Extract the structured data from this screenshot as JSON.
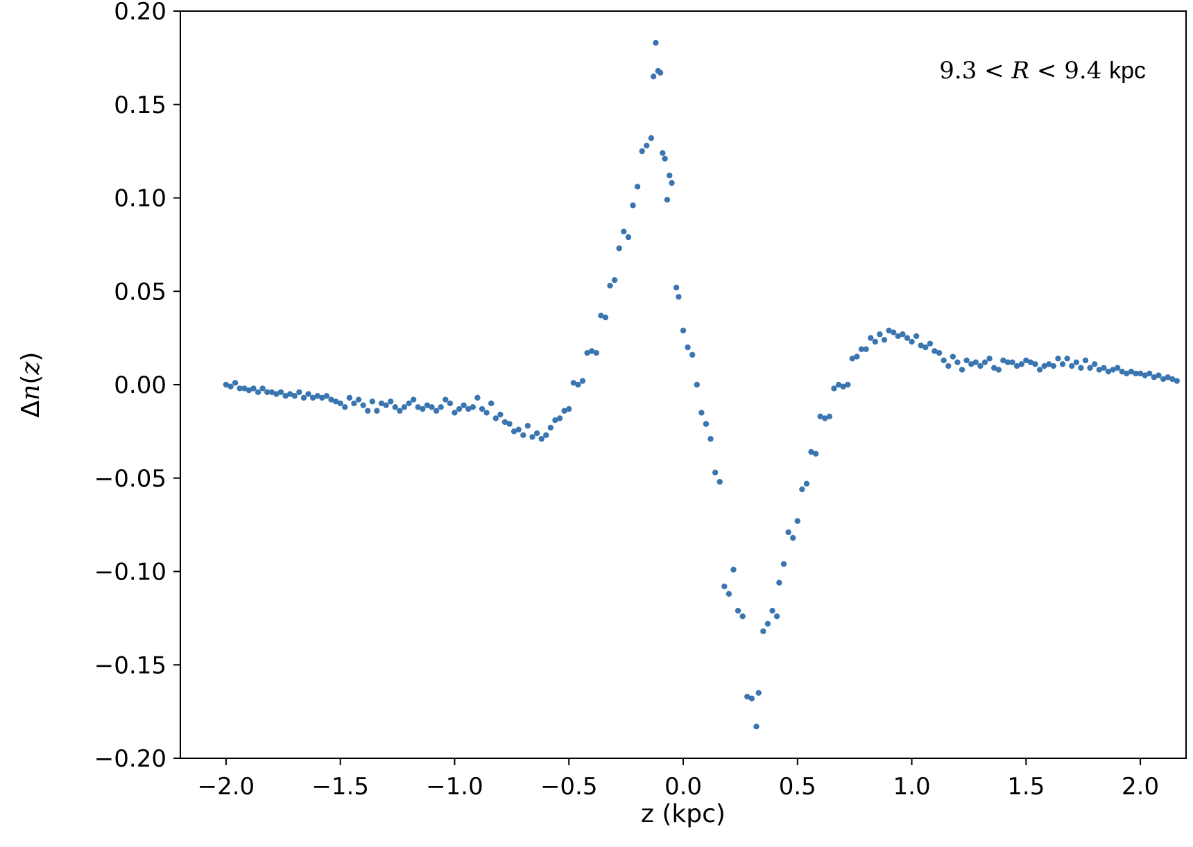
{
  "chart_data": {
    "type": "scatter",
    "xlabel": "z (kpc)",
    "ylabel": "Δn(z)",
    "ylabel_parts": {
      "delta": "Δ",
      "n": "n",
      "open": "(",
      "z": "z",
      "close": ")"
    },
    "annotation": {
      "text": "9.3 < R < 9.4 kpc",
      "parts": {
        "low": "9.3",
        "lt1": "<",
        "var": "R",
        "lt2": "<",
        "high": "9.4",
        "unit": "kpc"
      },
      "placement": "top-right"
    },
    "xlim": [
      -2.2,
      2.2
    ],
    "ylim": [
      -0.2,
      0.2
    ],
    "xticks": [
      -2.0,
      -1.5,
      -1.0,
      -0.5,
      0.0,
      0.5,
      1.0,
      1.5,
      2.0
    ],
    "xtick_labels": [
      "−2.0",
      "−1.5",
      "−1.0",
      "−0.5",
      "0.0",
      "0.5",
      "1.0",
      "1.5",
      "2.0"
    ],
    "yticks": [
      0.2,
      0.15,
      0.1,
      0.05,
      0.0,
      -0.05,
      -0.1,
      -0.15,
      -0.2
    ],
    "ytick_labels": [
      "0.20",
      "0.15",
      "0.10",
      "0.05",
      "0.00",
      "−0.05",
      "−0.10",
      "−0.15",
      "−0.20"
    ],
    "grid": false,
    "marker_color": "#3a75b0",
    "points": [
      [
        -2.0,
        0.0
      ],
      [
        -1.98,
        -0.001
      ],
      [
        -1.96,
        0.001
      ],
      [
        -1.94,
        -0.002
      ],
      [
        -1.92,
        -0.002
      ],
      [
        -1.9,
        -0.003
      ],
      [
        -1.88,
        -0.002
      ],
      [
        -1.86,
        -0.004
      ],
      [
        -1.84,
        -0.002
      ],
      [
        -1.82,
        -0.004
      ],
      [
        -1.8,
        -0.004
      ],
      [
        -1.78,
        -0.005
      ],
      [
        -1.76,
        -0.004
      ],
      [
        -1.74,
        -0.006
      ],
      [
        -1.72,
        -0.005
      ],
      [
        -1.7,
        -0.006
      ],
      [
        -1.68,
        -0.004
      ],
      [
        -1.66,
        -0.007
      ],
      [
        -1.64,
        -0.005
      ],
      [
        -1.62,
        -0.007
      ],
      [
        -1.6,
        -0.006
      ],
      [
        -1.58,
        -0.007
      ],
      [
        -1.56,
        -0.006
      ],
      [
        -1.54,
        -0.008
      ],
      [
        -1.52,
        -0.009
      ],
      [
        -1.5,
        -0.01
      ],
      [
        -1.48,
        -0.012
      ],
      [
        -1.46,
        -0.007
      ],
      [
        -1.44,
        -0.01
      ],
      [
        -1.42,
        -0.008
      ],
      [
        -1.4,
        -0.011
      ],
      [
        -1.38,
        -0.014
      ],
      [
        -1.36,
        -0.009
      ],
      [
        -1.34,
        -0.014
      ],
      [
        -1.32,
        -0.01
      ],
      [
        -1.3,
        -0.011
      ],
      [
        -1.28,
        -0.009
      ],
      [
        -1.26,
        -0.012
      ],
      [
        -1.24,
        -0.014
      ],
      [
        -1.22,
        -0.012
      ],
      [
        -1.2,
        -0.01
      ],
      [
        -1.18,
        -0.008
      ],
      [
        -1.16,
        -0.012
      ],
      [
        -1.14,
        -0.013
      ],
      [
        -1.12,
        -0.011
      ],
      [
        -1.1,
        -0.012
      ],
      [
        -1.08,
        -0.014
      ],
      [
        -1.06,
        -0.012
      ],
      [
        -1.04,
        -0.008
      ],
      [
        -1.02,
        -0.01
      ],
      [
        -1.0,
        -0.015
      ],
      [
        -0.98,
        -0.013
      ],
      [
        -0.96,
        -0.011
      ],
      [
        -0.94,
        -0.013
      ],
      [
        -0.92,
        -0.012
      ],
      [
        -0.9,
        -0.007
      ],
      [
        -0.88,
        -0.013
      ],
      [
        -0.86,
        -0.015
      ],
      [
        -0.84,
        -0.01
      ],
      [
        -0.82,
        -0.018
      ],
      [
        -0.8,
        -0.016
      ],
      [
        -0.78,
        -0.02
      ],
      [
        -0.76,
        -0.021
      ],
      [
        -0.74,
        -0.025
      ],
      [
        -0.72,
        -0.024
      ],
      [
        -0.7,
        -0.027
      ],
      [
        -0.68,
        -0.022
      ],
      [
        -0.66,
        -0.028
      ],
      [
        -0.64,
        -0.026
      ],
      [
        -0.62,
        -0.029
      ],
      [
        -0.6,
        -0.027
      ],
      [
        -0.58,
        -0.023
      ],
      [
        -0.56,
        -0.019
      ],
      [
        -0.54,
        -0.018
      ],
      [
        -0.52,
        -0.014
      ],
      [
        -0.5,
        -0.013
      ],
      [
        -0.48,
        0.001
      ],
      [
        -0.46,
        0.0
      ],
      [
        -0.44,
        0.002
      ],
      [
        -0.42,
        0.017
      ],
      [
        -0.4,
        0.018
      ],
      [
        -0.38,
        0.017
      ],
      [
        -0.36,
        0.037
      ],
      [
        -0.34,
        0.036
      ],
      [
        -0.32,
        0.053
      ],
      [
        -0.3,
        0.056
      ],
      [
        -0.28,
        0.073
      ],
      [
        -0.26,
        0.082
      ],
      [
        -0.24,
        0.079
      ],
      [
        -0.22,
        0.096
      ],
      [
        -0.2,
        0.106
      ],
      [
        -0.18,
        0.125
      ],
      [
        -0.16,
        0.128
      ],
      [
        -0.14,
        0.132
      ],
      [
        -0.13,
        0.165
      ],
      [
        -0.12,
        0.183
      ],
      [
        -0.11,
        0.168
      ],
      [
        -0.1,
        0.167
      ],
      [
        -0.09,
        0.124
      ],
      [
        -0.08,
        0.121
      ],
      [
        -0.07,
        0.099
      ],
      [
        -0.06,
        0.112
      ],
      [
        -0.05,
        0.108
      ],
      [
        -0.03,
        0.052
      ],
      [
        -0.02,
        0.047
      ],
      [
        0.0,
        0.029
      ],
      [
        0.02,
        0.02
      ],
      [
        0.04,
        0.016
      ],
      [
        0.06,
        0.0
      ],
      [
        0.08,
        -0.015
      ],
      [
        0.1,
        -0.021
      ],
      [
        0.12,
        -0.029
      ],
      [
        0.14,
        -0.047
      ],
      [
        0.16,
        -0.052
      ],
      [
        0.18,
        -0.108
      ],
      [
        0.2,
        -0.112
      ],
      [
        0.22,
        -0.099
      ],
      [
        0.24,
        -0.121
      ],
      [
        0.26,
        -0.124
      ],
      [
        0.28,
        -0.167
      ],
      [
        0.3,
        -0.168
      ],
      [
        0.32,
        -0.183
      ],
      [
        0.33,
        -0.165
      ],
      [
        0.35,
        -0.132
      ],
      [
        0.37,
        -0.128
      ],
      [
        0.39,
        -0.121
      ],
      [
        0.41,
        -0.124
      ],
      [
        0.42,
        -0.106
      ],
      [
        0.44,
        -0.096
      ],
      [
        0.46,
        -0.079
      ],
      [
        0.48,
        -0.082
      ],
      [
        0.5,
        -0.073
      ],
      [
        0.52,
        -0.056
      ],
      [
        0.54,
        -0.053
      ],
      [
        0.56,
        -0.036
      ],
      [
        0.58,
        -0.037
      ],
      [
        0.6,
        -0.017
      ],
      [
        0.62,
        -0.018
      ],
      [
        0.64,
        -0.017
      ],
      [
        0.66,
        -0.002
      ],
      [
        0.68,
        0.0
      ],
      [
        0.7,
        -0.001
      ],
      [
        0.72,
        0.0
      ],
      [
        0.74,
        0.014
      ],
      [
        0.76,
        0.015
      ],
      [
        0.78,
        0.019
      ],
      [
        0.8,
        0.019
      ],
      [
        0.82,
        0.025
      ],
      [
        0.84,
        0.023
      ],
      [
        0.86,
        0.027
      ],
      [
        0.88,
        0.024
      ],
      [
        0.9,
        0.029
      ],
      [
        0.92,
        0.028
      ],
      [
        0.94,
        0.026
      ],
      [
        0.96,
        0.027
      ],
      [
        0.98,
        0.025
      ],
      [
        1.0,
        0.023
      ],
      [
        1.02,
        0.026
      ],
      [
        1.04,
        0.021
      ],
      [
        1.06,
        0.02
      ],
      [
        1.08,
        0.022
      ],
      [
        1.1,
        0.018
      ],
      [
        1.12,
        0.017
      ],
      [
        1.14,
        0.013
      ],
      [
        1.16,
        0.01
      ],
      [
        1.18,
        0.015
      ],
      [
        1.2,
        0.012
      ],
      [
        1.22,
        0.008
      ],
      [
        1.24,
        0.013
      ],
      [
        1.26,
        0.011
      ],
      [
        1.28,
        0.012
      ],
      [
        1.3,
        0.01
      ],
      [
        1.32,
        0.012
      ],
      [
        1.34,
        0.014
      ],
      [
        1.36,
        0.009
      ],
      [
        1.38,
        0.008
      ],
      [
        1.4,
        0.013
      ],
      [
        1.42,
        0.012
      ],
      [
        1.44,
        0.012
      ],
      [
        1.46,
        0.01
      ],
      [
        1.48,
        0.011
      ],
      [
        1.5,
        0.013
      ],
      [
        1.52,
        0.012
      ],
      [
        1.54,
        0.011
      ],
      [
        1.56,
        0.008
      ],
      [
        1.58,
        0.01
      ],
      [
        1.6,
        0.011
      ],
      [
        1.62,
        0.01
      ],
      [
        1.64,
        0.014
      ],
      [
        1.66,
        0.011
      ],
      [
        1.68,
        0.014
      ],
      [
        1.7,
        0.01
      ],
      [
        1.72,
        0.012
      ],
      [
        1.74,
        0.009
      ],
      [
        1.76,
        0.013
      ],
      [
        1.78,
        0.009
      ],
      [
        1.8,
        0.011
      ],
      [
        1.82,
        0.008
      ],
      [
        1.84,
        0.009
      ],
      [
        1.86,
        0.007
      ],
      [
        1.88,
        0.008
      ],
      [
        1.9,
        0.009
      ],
      [
        1.92,
        0.007
      ],
      [
        1.94,
        0.006
      ],
      [
        1.96,
        0.007
      ],
      [
        1.98,
        0.006
      ],
      [
        2.0,
        0.006
      ],
      [
        2.02,
        0.005
      ],
      [
        2.04,
        0.006
      ],
      [
        2.06,
        0.004
      ],
      [
        2.08,
        0.005
      ],
      [
        2.1,
        0.003
      ],
      [
        2.12,
        0.004
      ],
      [
        2.14,
        0.003
      ],
      [
        2.16,
        0.002
      ]
    ]
  }
}
